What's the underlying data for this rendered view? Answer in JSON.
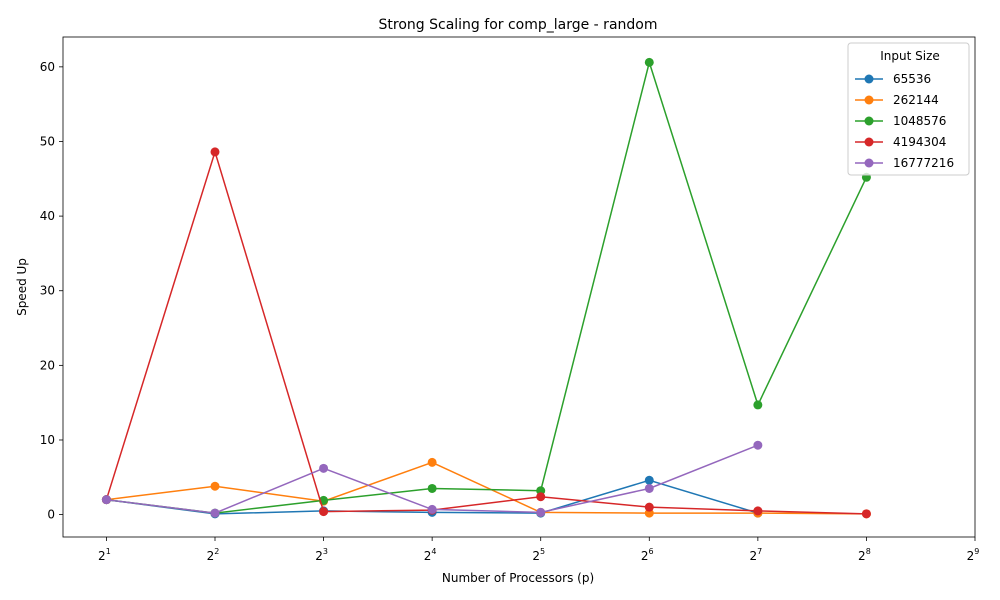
{
  "chart_data": {
    "type": "line",
    "title": "Strong Scaling for comp_large - random",
    "xlabel": "Number of Processors (p)",
    "ylabel": "Speed Up",
    "x_scale": "log2",
    "x_ticks": [
      2,
      4,
      8,
      16,
      32,
      64,
      128,
      256,
      512
    ],
    "x_tick_exponents": [
      "1",
      "2",
      "3",
      "4",
      "5",
      "6",
      "7",
      "8",
      "9"
    ],
    "y_ticks": [
      0,
      10,
      20,
      30,
      40,
      50,
      60
    ],
    "ylim": [
      -3,
      64
    ],
    "grid": false,
    "legend": {
      "title": "Input Size",
      "placement": "top-right"
    },
    "series": [
      {
        "name": "65536",
        "color": "#1f77b4",
        "x": [
          2,
          4,
          8,
          16,
          32,
          64,
          128
        ],
        "y": [
          2.0,
          0.1,
          0.5,
          0.3,
          0.2,
          4.6,
          0.2
        ]
      },
      {
        "name": "262144",
        "color": "#ff7f0e",
        "x": [
          2,
          4,
          8,
          16,
          32,
          64,
          128,
          256
        ],
        "y": [
          2.0,
          3.8,
          1.8,
          7.0,
          0.3,
          0.2,
          0.2,
          0.1
        ]
      },
      {
        "name": "1048576",
        "color": "#2ca02c",
        "x": [
          2,
          4,
          8,
          16,
          32,
          64,
          128,
          256
        ],
        "y": [
          2.0,
          0.2,
          1.9,
          3.5,
          3.2,
          60.6,
          14.7,
          45.2
        ]
      },
      {
        "name": "4194304",
        "color": "#d62728",
        "x": [
          2,
          4,
          8,
          16,
          32,
          64,
          128,
          256
        ],
        "y": [
          2.0,
          48.6,
          0.4,
          0.6,
          2.4,
          1.0,
          0.5,
          0.1
        ]
      },
      {
        "name": "16777216",
        "color": "#9467bd",
        "x": [
          2,
          4,
          8,
          16,
          32,
          64,
          128
        ],
        "y": [
          2.0,
          0.2,
          6.2,
          0.7,
          0.3,
          3.5,
          9.3
        ]
      }
    ]
  }
}
